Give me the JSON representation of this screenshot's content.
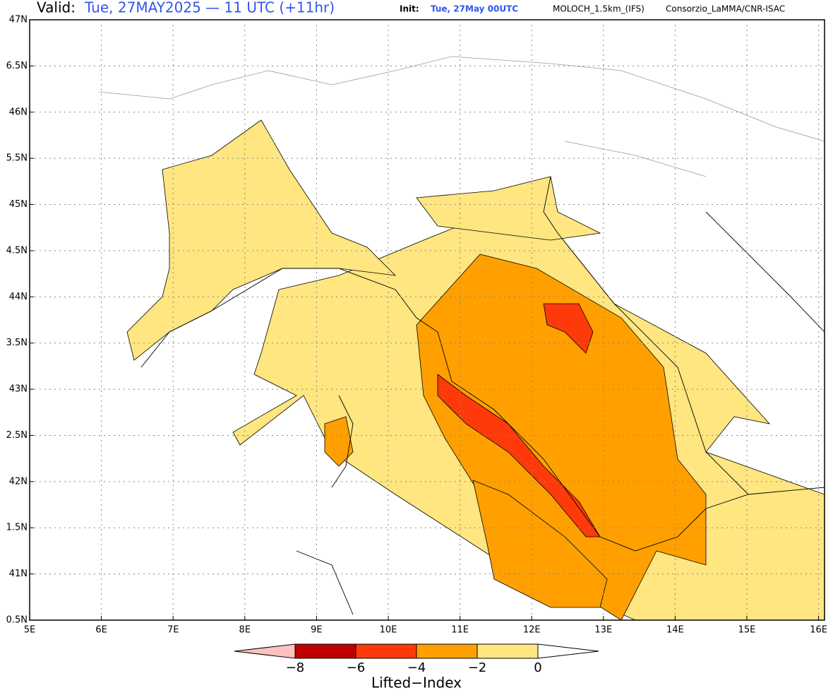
{
  "header": {
    "valid_label": "Valid:",
    "valid_time": "Tue, 27MAY2025 — 11 UTC (+11hr)",
    "init_label": "Init:",
    "init_time": "Tue, 27May 00UTC",
    "model": "MOLOCH_1.5km_(IFS)",
    "credit": "Consorzio_LaMMA/CNR-ISAC"
  },
  "map": {
    "lon_ticks": [
      "5E",
      "6E",
      "7E",
      "8E",
      "9E",
      "10E",
      "11E",
      "12E",
      "13E",
      "14E",
      "15E",
      "16E"
    ],
    "lat_ticks": [
      "47N",
      "6.5N",
      "46N",
      "5.5N",
      "45N",
      "4.5N",
      "44N",
      "3.5N",
      "43N",
      "2.5N",
      "42N",
      "1.5N",
      "41N",
      "0.5N"
    ]
  },
  "legend": {
    "title": "Lifted−Index",
    "levels": [
      "−8",
      "−6",
      "−4",
      "−2",
      "0"
    ],
    "colors": [
      "#ffc0c0",
      "#c00000",
      "#ff3a0a",
      "#ffa000",
      "#ffe680",
      "#ffffff"
    ]
  }
}
